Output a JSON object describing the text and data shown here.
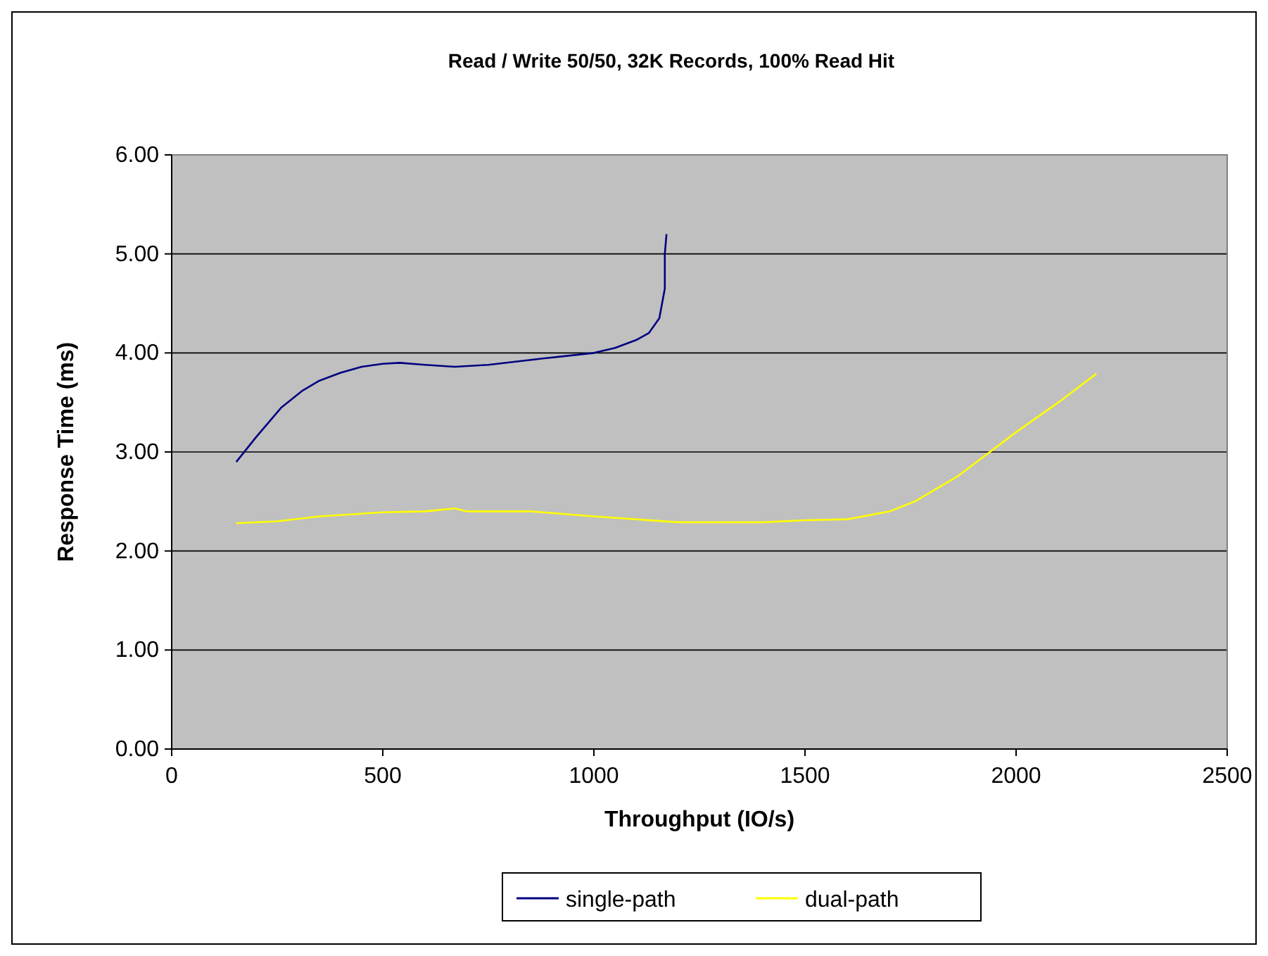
{
  "chart_data": {
    "type": "line",
    "title": "Read / Write 50/50, 32K Records, 100% Read Hit",
    "xlabel": "Throughput (IO/s)",
    "ylabel": "Response Time (ms)",
    "xlim": [
      0,
      2500
    ],
    "xticks": [
      0,
      500,
      1000,
      1500,
      2000,
      2500
    ],
    "ylim": [
      0,
      6
    ],
    "yticks": [
      {
        "value": 0,
        "label": "0.00"
      },
      {
        "value": 1,
        "label": "1.00"
      },
      {
        "value": 2,
        "label": "2.00"
      },
      {
        "value": 3,
        "label": "3.00"
      },
      {
        "value": 4,
        "label": "4.00"
      },
      {
        "value": 5,
        "label": "5.00"
      },
      {
        "value": 6,
        "label": "6.00"
      }
    ],
    "grid": "y",
    "legend": "bottom",
    "marker": "none",
    "series": [
      {
        "name": "single-path",
        "color": "#000080",
        "x": [
          153,
          200,
          260,
          310,
          350,
          400,
          450,
          500,
          540,
          600,
          670,
          750,
          850,
          1000,
          1050,
          1100,
          1130,
          1155,
          1168,
          1168,
          1172
        ],
        "values": [
          2.9,
          3.15,
          3.45,
          3.62,
          3.72,
          3.8,
          3.86,
          3.89,
          3.9,
          3.88,
          3.86,
          3.88,
          3.93,
          4.0,
          4.05,
          4.13,
          4.2,
          4.35,
          4.65,
          5.0,
          5.2
        ]
      },
      {
        "name": "dual-path",
        "color": "#ffff00",
        "x": [
          153,
          250,
          350,
          500,
          600,
          670,
          700,
          850,
          1000,
          1200,
          1400,
          1500,
          1600,
          1700,
          1760,
          1860,
          2000,
          2100,
          2190
        ],
        "values": [
          2.28,
          2.3,
          2.35,
          2.39,
          2.4,
          2.43,
          2.4,
          2.4,
          2.35,
          2.29,
          2.29,
          2.31,
          2.32,
          2.4,
          2.5,
          2.75,
          3.2,
          3.5,
          3.79
        ]
      }
    ]
  }
}
